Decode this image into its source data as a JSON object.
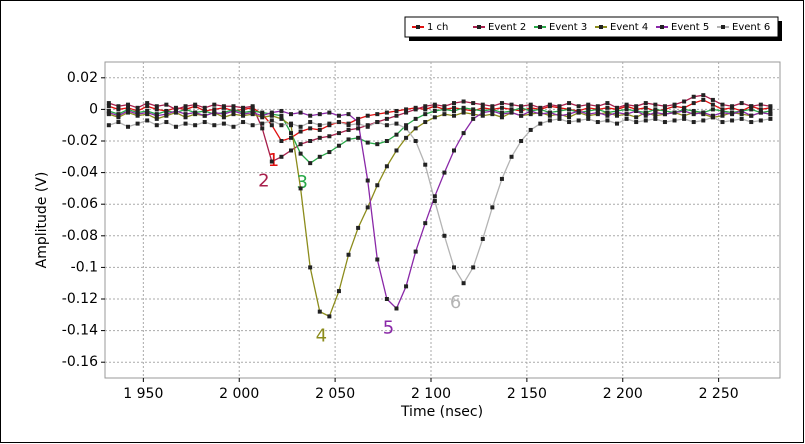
{
  "chart_data": {
    "type": "line",
    "x_label": "Time (nsec)",
    "y_label": "Amplitude (V)",
    "xlim": [
      1930,
      2282
    ],
    "ylim": [
      -0.17,
      0.03
    ],
    "xticks": [
      {
        "value": 1950,
        "label": "1 950"
      },
      {
        "value": 2000,
        "label": "2 000"
      },
      {
        "value": 2050,
        "label": "2 050"
      },
      {
        "value": 2100,
        "label": "2 100"
      },
      {
        "value": 2150,
        "label": "2 150"
      },
      {
        "value": 2200,
        "label": "2 200"
      },
      {
        "value": 2250,
        "label": "2 250"
      }
    ],
    "yticks": [
      0.02,
      0,
      -0.02,
      -0.04,
      -0.06,
      -0.08,
      -0.1,
      -0.12,
      -0.14,
      -0.16
    ],
    "grid": true,
    "legend": "top-right",
    "x": [
      1932,
      1937,
      1942,
      1947,
      1952,
      1957,
      1962,
      1967,
      1972,
      1977,
      1982,
      1987,
      1992,
      1997,
      2002,
      2007,
      2012,
      2017,
      2022,
      2027,
      2032,
      2037,
      2042,
      2047,
      2052,
      2057,
      2062,
      2067,
      2072,
      2077,
      2082,
      2087,
      2092,
      2097,
      2102,
      2107,
      2112,
      2117,
      2122,
      2127,
      2132,
      2137,
      2142,
      2147,
      2152,
      2157,
      2162,
      2167,
      2172,
      2177,
      2182,
      2187,
      2192,
      2197,
      2202,
      2207,
      2212,
      2217,
      2222,
      2227,
      2232,
      2237,
      2242,
      2247,
      2252,
      2257,
      2262,
      2267,
      2272,
      2277
    ],
    "series": [
      {
        "name": "1 ch",
        "label": "1",
        "color": "#e01010",
        "values": [
          0.002,
          0,
          0.001,
          -0.001,
          0.002,
          0,
          -0.001,
          0.001,
          0,
          0.002,
          -0.001,
          0,
          0.001,
          -0.001,
          0,
          0.001,
          -0.003,
          -0.01,
          -0.02,
          -0.018,
          -0.014,
          -0.012,
          -0.013,
          -0.01,
          -0.008,
          -0.009,
          -0.006,
          -0.004,
          -0.003,
          -0.002,
          -0.001,
          0,
          0.001,
          0,
          0.002,
          0,
          0.001,
          0,
          -0.001,
          0.001,
          0,
          0.001,
          0,
          -0.001,
          0.001,
          0,
          0.002,
          0.001,
          0,
          -0.001,
          0.001,
          0,
          0.001,
          0,
          0.002,
          0,
          0.001,
          -0.001,
          0,
          0.002,
          0.001,
          0.004,
          0.006,
          0.003,
          0,
          0.001,
          -0.001,
          0.002,
          0,
          0.001
        ]
      },
      {
        "name": "Event 2",
        "label": "2",
        "color": "#a8204c",
        "values": [
          0.004,
          0.002,
          0.003,
          0.001,
          0.004,
          0.002,
          0.003,
          0,
          0.002,
          0.003,
          0.001,
          0.003,
          0.002,
          0.002,
          0.001,
          0.002,
          -0.012,
          -0.033,
          -0.03,
          -0.026,
          -0.022,
          -0.02,
          -0.018,
          -0.017,
          -0.015,
          -0.013,
          -0.012,
          -0.01,
          -0.008,
          -0.006,
          -0.004,
          -0.002,
          0,
          0.002,
          0.003,
          0.002,
          0.004,
          0.005,
          0.004,
          0.003,
          0.002,
          0.004,
          0.003,
          0.002,
          0.003,
          0.001,
          0.003,
          0.002,
          0.004,
          0.002,
          0.003,
          0.002,
          0.004,
          0.001,
          0.003,
          0.002,
          0.004,
          0.003,
          0.002,
          0.003,
          0.005,
          0.008,
          0.009,
          0.006,
          0.003,
          0.002,
          0.004,
          0.002,
          0.003,
          0.002
        ]
      },
      {
        "name": "Event 3",
        "label": "3",
        "color": "#28a848",
        "values": [
          -0.001,
          -0.003,
          0,
          -0.002,
          -0.001,
          -0.003,
          -0.001,
          -0.002,
          0,
          -0.002,
          -0.001,
          -0.003,
          -0.002,
          0,
          -0.002,
          -0.001,
          -0.002,
          -0.003,
          -0.004,
          -0.015,
          -0.028,
          -0.034,
          -0.03,
          -0.027,
          -0.023,
          -0.019,
          -0.018,
          -0.021,
          -0.022,
          -0.02,
          -0.016,
          -0.01,
          -0.006,
          -0.003,
          -0.001,
          0,
          -0.001,
          0.001,
          0,
          -0.001,
          0,
          -0.002,
          -0.001,
          0.001,
          -0.001,
          0,
          -0.002,
          -0.001,
          0,
          -0.002,
          -0.001,
          0,
          -0.002,
          -0.001,
          0,
          -0.001,
          -0.002,
          0,
          -0.001,
          -0.002,
          0,
          -0.001,
          -0.002,
          0,
          -0.001,
          -0.002,
          -0.001,
          0,
          -0.002,
          -0.001
        ]
      },
      {
        "name": "Event 4",
        "label": "4",
        "color": "#8c8c1c",
        "values": [
          -0.003,
          -0.005,
          -0.002,
          -0.004,
          -0.003,
          -0.006,
          -0.004,
          -0.002,
          -0.005,
          -0.003,
          -0.004,
          -0.002,
          -0.005,
          -0.003,
          -0.004,
          -0.003,
          -0.005,
          -0.004,
          -0.006,
          -0.01,
          -0.05,
          -0.1,
          -0.128,
          -0.131,
          -0.115,
          -0.092,
          -0.075,
          -0.062,
          -0.048,
          -0.036,
          -0.026,
          -0.018,
          -0.012,
          -0.008,
          -0.005,
          -0.003,
          -0.004,
          -0.002,
          -0.003,
          -0.004,
          -0.003,
          -0.005,
          -0.002,
          -0.004,
          -0.003,
          -0.002,
          -0.004,
          -0.003,
          -0.005,
          -0.002,
          -0.004,
          -0.003,
          -0.002,
          -0.004,
          -0.003,
          -0.005,
          -0.002,
          -0.004,
          -0.003,
          -0.002,
          -0.004,
          -0.002,
          -0.003,
          -0.005,
          -0.004,
          -0.002,
          -0.003,
          -0.004,
          -0.002,
          -0.003
        ]
      },
      {
        "name": "Event 5",
        "label": "5",
        "color": "#8a28a8",
        "values": [
          -0.002,
          -0.004,
          -0.001,
          -0.003,
          -0.002,
          -0.004,
          -0.003,
          -0.001,
          -0.003,
          -0.002,
          -0.004,
          -0.002,
          -0.003,
          -0.001,
          -0.003,
          -0.002,
          -0.004,
          -0.002,
          -0.001,
          -0.003,
          -0.002,
          -0.004,
          -0.003,
          -0.002,
          -0.004,
          -0.003,
          -0.008,
          -0.045,
          -0.095,
          -0.12,
          -0.126,
          -0.112,
          -0.09,
          -0.072,
          -0.055,
          -0.04,
          -0.026,
          -0.015,
          -0.006,
          -0.002,
          -0.001,
          -0.003,
          -0.002,
          -0.004,
          -0.001,
          -0.003,
          -0.002,
          -0.004,
          -0.003,
          -0.001,
          -0.003,
          -0.002,
          -0.004,
          -0.002,
          -0.003,
          -0.001,
          -0.004,
          -0.002,
          -0.003,
          -0.002,
          -0.001,
          -0.003,
          -0.002,
          -0.004,
          -0.002,
          -0.003,
          -0.001,
          -0.004,
          -0.002,
          -0.003
        ]
      },
      {
        "name": "Event 6",
        "label": "6",
        "color": "#b4b4b4",
        "values": [
          -0.01,
          -0.008,
          -0.011,
          -0.009,
          -0.007,
          -0.01,
          -0.008,
          -0.011,
          -0.009,
          -0.01,
          -0.008,
          -0.01,
          -0.009,
          -0.011,
          -0.008,
          -0.01,
          -0.009,
          -0.007,
          -0.01,
          -0.009,
          -0.011,
          -0.008,
          -0.01,
          -0.009,
          -0.008,
          -0.01,
          -0.009,
          -0.011,
          -0.008,
          -0.01,
          -0.009,
          -0.012,
          -0.02,
          -0.035,
          -0.058,
          -0.08,
          -0.1,
          -0.11,
          -0.1,
          -0.082,
          -0.062,
          -0.044,
          -0.03,
          -0.02,
          -0.013,
          -0.009,
          -0.007,
          -0.006,
          -0.008,
          -0.007,
          -0.006,
          -0.008,
          -0.007,
          -0.009,
          -0.006,
          -0.008,
          -0.007,
          -0.006,
          -0.008,
          -0.007,
          -0.006,
          -0.008,
          -0.007,
          -0.005,
          -0.008,
          -0.007,
          -0.006,
          -0.008,
          -0.007,
          -0.006
        ]
      }
    ]
  }
}
